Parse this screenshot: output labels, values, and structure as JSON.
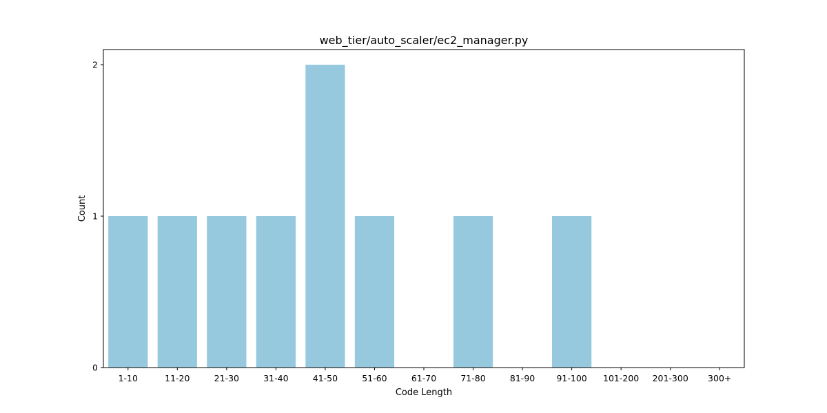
{
  "chart_data": {
    "type": "bar",
    "title": "web_tier/auto_scaler/ec2_manager.py",
    "xlabel": "Code Length",
    "ylabel": "Count",
    "categories": [
      "1-10",
      "11-20",
      "21-30",
      "31-40",
      "41-50",
      "51-60",
      "61-70",
      "71-80",
      "81-90",
      "91-100",
      "101-200",
      "201-300",
      "300+"
    ],
    "values": [
      1,
      1,
      1,
      1,
      2,
      1,
      0,
      1,
      0,
      1,
      0,
      0,
      0
    ],
    "ylim": [
      0,
      2.1
    ],
    "yticks": [
      0,
      1,
      2
    ],
    "bar_color": "#96c9de",
    "grid": false,
    "legend": "none"
  }
}
